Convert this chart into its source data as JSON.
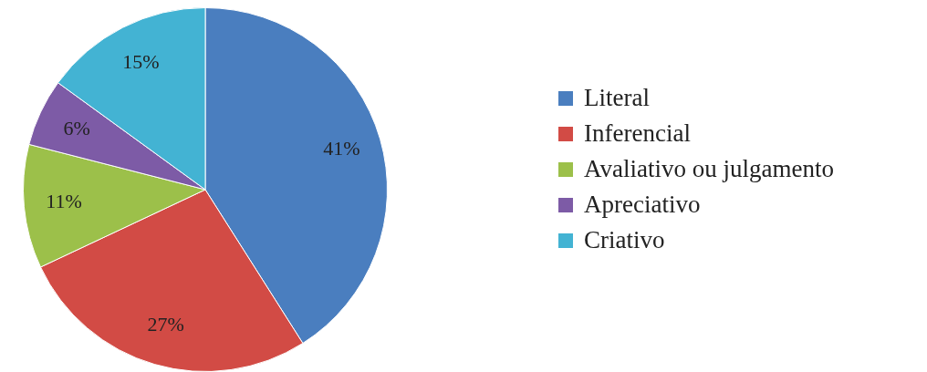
{
  "chart_data": {
    "type": "pie",
    "categories": [
      "Literal",
      "Inferencial",
      "Avaliativo ou julgamento",
      "Apreciativo",
      "Criativo"
    ],
    "values": [
      41,
      27,
      11,
      6,
      15
    ],
    "colors": [
      "#4a7ebf",
      "#d24b45",
      "#9cc04a",
      "#7d5ba6",
      "#43b3d3"
    ],
    "value_labels": [
      "41%",
      "27%",
      "11%",
      "6%",
      "15%"
    ],
    "legend": "right"
  }
}
